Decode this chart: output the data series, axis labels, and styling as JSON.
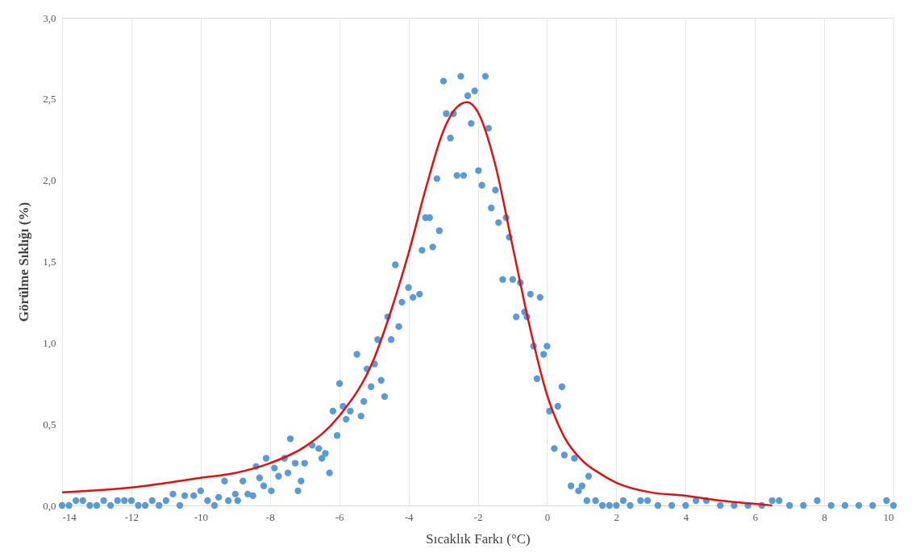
{
  "chart_data": {
    "type": "scatter",
    "xlabel": "Sıcaklık Farkı (°C)",
    "ylabel": "Görülme Sıklığı (%)",
    "xlim": [
      -14,
      10
    ],
    "xticks": [
      -14,
      -12,
      -10,
      -8,
      -6,
      -4,
      -2,
      0,
      2,
      4,
      6,
      8,
      10
    ],
    "ylim": [
      0,
      3
    ],
    "yticks": [
      {
        "value": 0,
        "label": "0,0"
      },
      {
        "value": 0.5,
        "label": "0,5"
      },
      {
        "value": 1,
        "label": "1,0"
      },
      {
        "value": 1.5,
        "label": "1,5"
      },
      {
        "value": 2,
        "label": "2,0"
      },
      {
        "value": 2.5,
        "label": "2,5"
      },
      {
        "value": 3,
        "label": "3,0"
      }
    ],
    "grid": "x",
    "legend": false,
    "marker": "circle",
    "series": [
      {
        "type": "scatter",
        "color": "#5b9bd5",
        "x": [
          -14,
          -13.8,
          -13.6,
          -13.4,
          -13.2,
          -13.0,
          -12.8,
          -12.6,
          -12.4,
          -12.2,
          -12.0,
          -11.8,
          -11.6,
          -11.4,
          -11.2,
          -11.0,
          -10.8,
          -10.6,
          -10.46,
          -10.2,
          -10.0,
          -9.8,
          -9.6,
          -9.48,
          -9.31,
          -9.2,
          -9.0,
          -8.93,
          -8.78,
          -8.64,
          -8.49,
          -8.4,
          -8.3,
          -8.18,
          -8.11,
          -7.96,
          -7.87,
          -7.75,
          -7.58,
          -7.48,
          -7.41,
          -7.27,
          -7.19,
          -7.1,
          -7.0,
          -6.78,
          -6.59,
          -6.5,
          -6.4,
          -6.28,
          -6.18,
          -6.06,
          -5.99,
          -5.89,
          -5.8,
          -5.68,
          -5.49,
          -5.37,
          -5.29,
          -5.2,
          -5.08,
          -4.98,
          -4.89,
          -4.79,
          -4.69,
          -4.6,
          -4.5,
          -4.38,
          -4.28,
          -4.19,
          -4.0,
          -3.87,
          -3.68,
          -3.61,
          -3.51,
          -3.39,
          -3.3,
          -3.18,
          -3.11,
          -2.99,
          -2.91,
          -2.79,
          -2.7,
          -2.6,
          -2.49,
          -2.41,
          -2.29,
          -2.19,
          -2.09,
          -1.98,
          -1.88,
          -1.78,
          -1.69,
          -1.61,
          -1.49,
          -1.4,
          -1.28,
          -1.18,
          -1.09,
          -0.99,
          -0.89,
          -0.77,
          -0.65,
          -0.58,
          -0.48,
          -0.39,
          -0.29,
          -0.2,
          -0.1,
          0.0,
          0.07,
          0.21,
          0.31,
          0.43,
          0.5,
          0.69,
          0.79,
          0.91,
          1.01,
          1.15,
          1.2,
          1.4,
          1.6,
          1.8,
          2.0,
          2.2,
          2.4,
          2.7,
          2.9,
          3.2,
          3.6,
          4.0,
          4.3,
          4.6,
          5.0,
          5.4,
          5.8,
          6.2,
          6.5,
          6.7,
          7.0,
          7.4,
          7.8,
          8.2,
          8.6,
          9.0,
          9.4,
          9.8,
          10.0
        ],
        "values": [
          0,
          0,
          0.03,
          0.03,
          0,
          0,
          0.03,
          0,
          0.03,
          0.03,
          0.03,
          0,
          0,
          0.03,
          0,
          0.03,
          0.07,
          0,
          0.06,
          0.06,
          0.09,
          0.03,
          0,
          0.05,
          0.15,
          0.03,
          0.07,
          0.03,
          0.15,
          0.07,
          0.06,
          0.24,
          0.17,
          0.12,
          0.29,
          0.09,
          0.23,
          0.18,
          0.29,
          0.2,
          0.41,
          0.26,
          0.09,
          0.15,
          0.26,
          0.37,
          0.35,
          0.29,
          0.32,
          0.2,
          0.58,
          0.43,
          0.75,
          0.61,
          0.53,
          0.58,
          0.93,
          0.55,
          0.64,
          0.84,
          0.73,
          0.87,
          1.02,
          0.77,
          0.67,
          1.16,
          1.02,
          1.48,
          1.1,
          1.25,
          1.34,
          1.28,
          1.3,
          1.57,
          1.77,
          1.77,
          1.59,
          2.01,
          1.69,
          2.61,
          2.41,
          2.26,
          2.41,
          2.03,
          2.64,
          2.03,
          2.52,
          2.35,
          2.55,
          2.06,
          1.97,
          2.64,
          2.32,
          1.83,
          1.94,
          1.74,
          1.39,
          1.77,
          1.65,
          1.39,
          1.16,
          1.37,
          1.19,
          1.16,
          1.3,
          0.98,
          0.78,
          1.28,
          0.93,
          0.98,
          0.58,
          0.35,
          0.61,
          0.73,
          0.31,
          0.12,
          0.29,
          0.09,
          0.12,
          0.03,
          0.18,
          0.03,
          0,
          0,
          0,
          0.03,
          0,
          0.03,
          0.03,
          0,
          0,
          0,
          0.03,
          0.03,
          0,
          0,
          0,
          0,
          0.03,
          0.03,
          0,
          0,
          0.03,
          0,
          0,
          0,
          0,
          0.03,
          0
        ]
      },
      {
        "type": "line",
        "color": "#e01010",
        "marker": "none",
        "x": [
          -14,
          -12,
          -10,
          -9,
          -8,
          -7,
          -6,
          -5,
          -4.5,
          -4,
          -3.5,
          -3,
          -2.6,
          -2.3,
          -2,
          -1.5,
          -1,
          -0.5,
          0,
          0.5,
          1,
          1.5,
          2,
          3,
          4,
          5,
          6,
          6.5
        ],
        "values": [
          0.08,
          0.11,
          0.17,
          0.2,
          0.26,
          0.36,
          0.55,
          0.9,
          1.2,
          1.55,
          1.95,
          2.3,
          2.45,
          2.48,
          2.42,
          2.1,
          1.6,
          1.1,
          0.68,
          0.42,
          0.28,
          0.2,
          0.14,
          0.08,
          0.06,
          0.03,
          0.01,
          0
        ]
      }
    ]
  }
}
